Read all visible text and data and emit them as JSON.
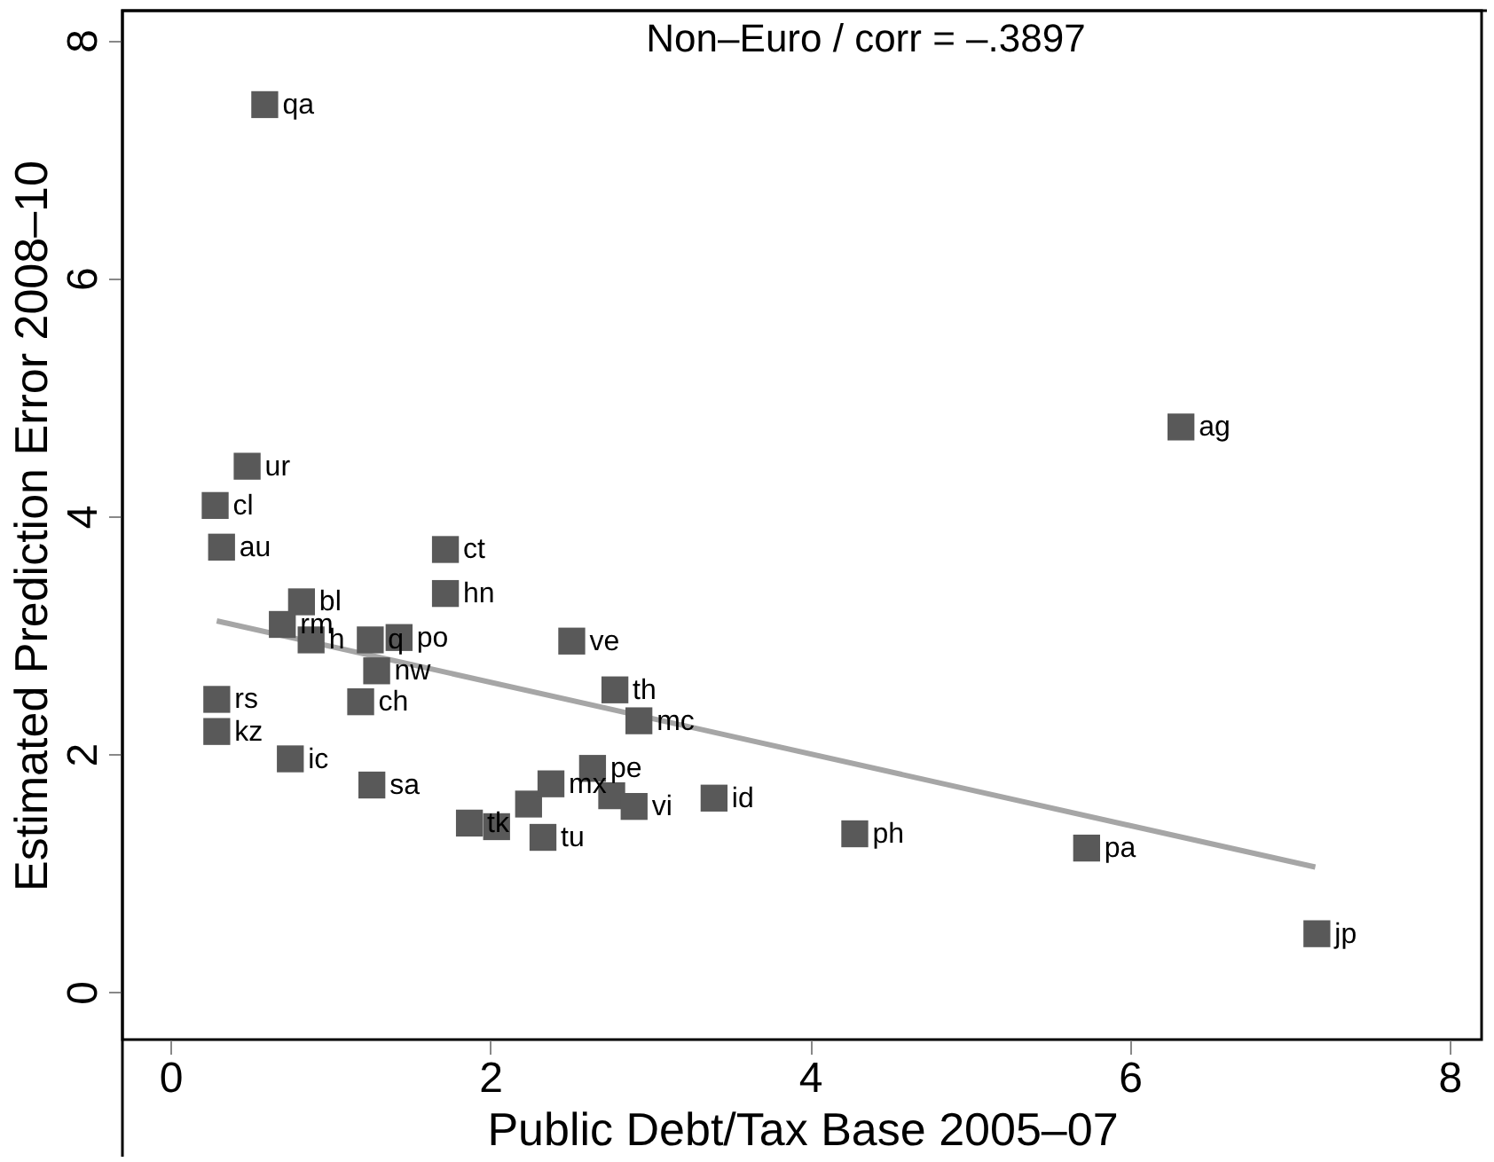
{
  "chart_data": {
    "type": "scatter",
    "title": "Non–Euro / corr = –.3897",
    "xlabel": "Public Debt/Tax Base 2005–07",
    "ylabel": "Estimated Prediction Error 2008–10",
    "xlim": [
      -0.3,
      8.2
    ],
    "ylim": [
      -0.4,
      8.25
    ],
    "xticks": [
      0,
      2,
      4,
      6,
      8
    ],
    "yticks": [
      0,
      2,
      4,
      6,
      8
    ],
    "grid": false,
    "marker": "square",
    "series": [
      {
        "color": "#595959",
        "x": [
          0.59,
          6.32,
          7.17,
          5.73,
          4.28,
          3.4,
          0.48,
          0.28,
          0.32,
          1.72,
          1.72,
          0.82,
          0.7,
          0.88,
          1.25,
          1.43,
          1.29,
          1.19,
          0.29,
          0.29,
          0.75,
          1.26,
          2.51,
          2.78,
          2.93,
          1.87,
          2.04,
          2.24,
          2.38,
          2.33,
          2.64,
          2.76,
          2.9
        ],
        "values": [
          7.46,
          4.75,
          0.49,
          1.21,
          1.33,
          1.63,
          4.42,
          4.09,
          3.74,
          3.72,
          3.35,
          3.28,
          3.09,
          2.96,
          2.96,
          2.98,
          2.7,
          2.44,
          2.46,
          2.19,
          1.96,
          1.74,
          2.95,
          2.54,
          2.28,
          1.42,
          1.39,
          1.58,
          1.75,
          1.3,
          1.88,
          1.65,
          1.56
        ],
        "value_labels": [
          "qa",
          "ag",
          "jp",
          "pa",
          "ph",
          "id",
          "ur",
          "cl",
          "au",
          "ct",
          "hn",
          "bl",
          "rm",
          "h",
          "q",
          "po",
          "nw",
          "ch",
          "rs",
          "kz",
          "ic",
          "sa",
          "ve",
          "th",
          "mc",
          "tk",
          null,
          null,
          "mx",
          "tu",
          "pe",
          null,
          "vi"
        ]
      },
      {
        "type": "line",
        "color": "#a6a6a6",
        "marker": "none",
        "x": [
          0.29,
          7.16
        ],
        "values": [
          3.12,
          1.05
        ]
      }
    ]
  }
}
